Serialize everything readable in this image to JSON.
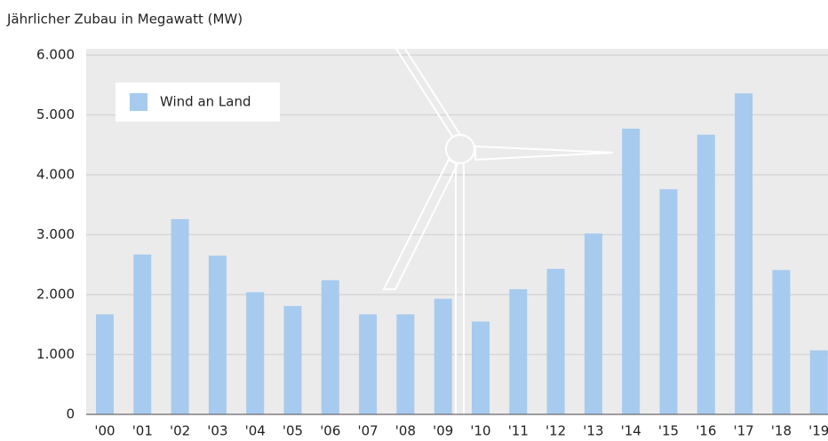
{
  "chart_data": {
    "type": "bar",
    "title": "Jährlicher Zubau in Megawatt (MW)",
    "categories": [
      "'00",
      "'01",
      "'02",
      "'03",
      "'04",
      "'05",
      "'06",
      "'07",
      "'08",
      "'09",
      "'10",
      "'11",
      "'12",
      "'13",
      "'14",
      "'15",
      "'16",
      "'17",
      "'18",
      "'19"
    ],
    "series": [
      {
        "name": "Wind an Land",
        "color": "#a6cbee",
        "values": [
          1670,
          2670,
          3260,
          2650,
          2040,
          1810,
          2240,
          1670,
          1670,
          1930,
          1550,
          2090,
          2430,
          3020,
          4770,
          3760,
          4670,
          5360,
          2410,
          1070
        ]
      }
    ],
    "ylim": [
      0,
      6000
    ],
    "yticks": [
      0,
      {
        "value": 1000,
        "label": "1.000"
      },
      {
        "value": 2000,
        "label": "2.000"
      },
      {
        "value": 3000,
        "label": "3.000"
      },
      {
        "value": 4000,
        "label": "4.000"
      },
      {
        "value": 5000,
        "label": "5.000"
      },
      {
        "value": 6000,
        "label": "6.000"
      }
    ],
    "grid": true,
    "legend": "upper-left"
  }
}
